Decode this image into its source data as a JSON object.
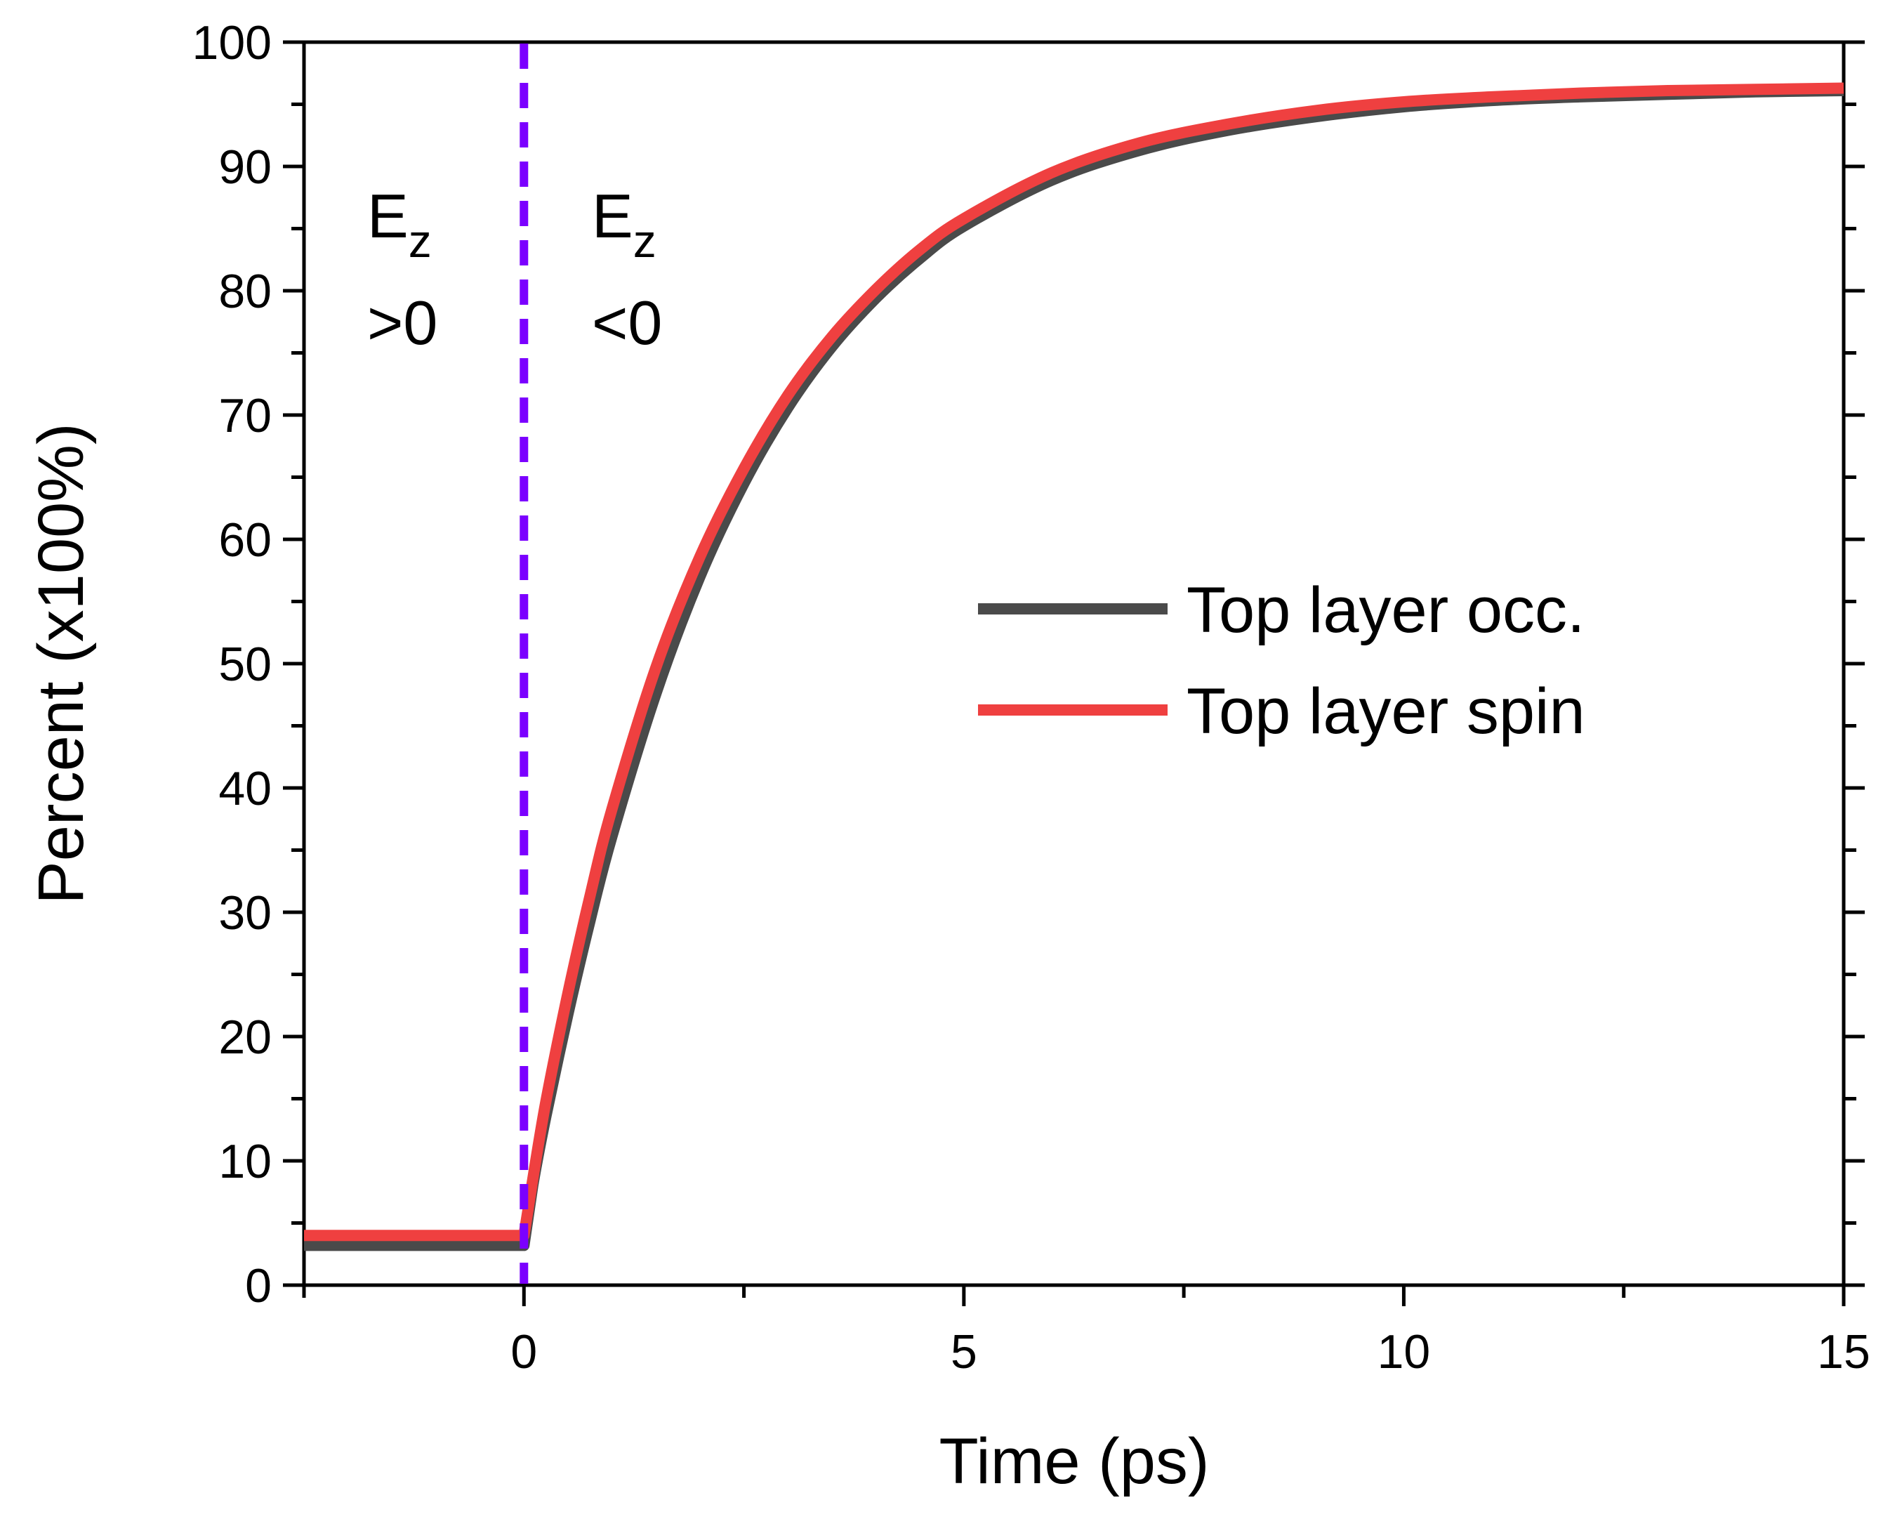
{
  "chart_data": {
    "type": "line",
    "title": "",
    "xlabel": "Time (ps)",
    "ylabel": "Percent (x100%)",
    "xlim": [
      -2.5,
      15
    ],
    "ylim": [
      0,
      100
    ],
    "x_ticks": [
      0,
      5,
      10,
      15
    ],
    "y_ticks": [
      0,
      10,
      20,
      30,
      40,
      50,
      60,
      70,
      80,
      90,
      100
    ],
    "grid": false,
    "legend_position": "center-right",
    "series": [
      {
        "name": "Top layer occ.",
        "color": "#4a4a4a",
        "x": [
          -2.5,
          -1,
          -0.5,
          0,
          0.1,
          0.25,
          0.5,
          0.75,
          1,
          1.5,
          2,
          2.5,
          3,
          3.5,
          4,
          4.5,
          5,
          6,
          7,
          8,
          9,
          10,
          11,
          12,
          13,
          14,
          15
        ],
        "y": [
          3.2,
          3.2,
          3.2,
          3.2,
          8.0,
          13.6,
          21.8,
          29.3,
          36.1,
          47.6,
          57.0,
          64.5,
          70.6,
          75.5,
          79.4,
          82.6,
          85.2,
          88.9,
          91.3,
          92.9,
          94.0,
          94.8,
          95.3,
          95.6,
          95.8,
          96.0,
          96.1
        ]
      },
      {
        "name": "Top layer spin",
        "color": "#ef4040",
        "x": [
          -2.5,
          -1,
          -0.5,
          0,
          0.1,
          0.25,
          0.5,
          0.75,
          1,
          1.5,
          2,
          2.5,
          3,
          3.5,
          4,
          4.5,
          5,
          6,
          7,
          8,
          9,
          10,
          11,
          12,
          13,
          14,
          15
        ],
        "y": [
          4.0,
          4.0,
          4.0,
          4.0,
          8.5,
          14.8,
          23.5,
          31.3,
          38.3,
          49.7,
          58.6,
          65.7,
          71.6,
          76.3,
          80.1,
          83.3,
          85.8,
          89.5,
          91.9,
          93.4,
          94.5,
          95.2,
          95.6,
          95.9,
          96.1,
          96.2,
          96.3
        ]
      }
    ],
    "annotations": {
      "marker_x": 0,
      "marker_color": "#7b00ff",
      "region_left": {
        "line1": "E",
        "sub": "z",
        "line2": ">0"
      },
      "region_right": {
        "line1": "E",
        "sub": "z",
        "line2": "<0"
      }
    }
  }
}
